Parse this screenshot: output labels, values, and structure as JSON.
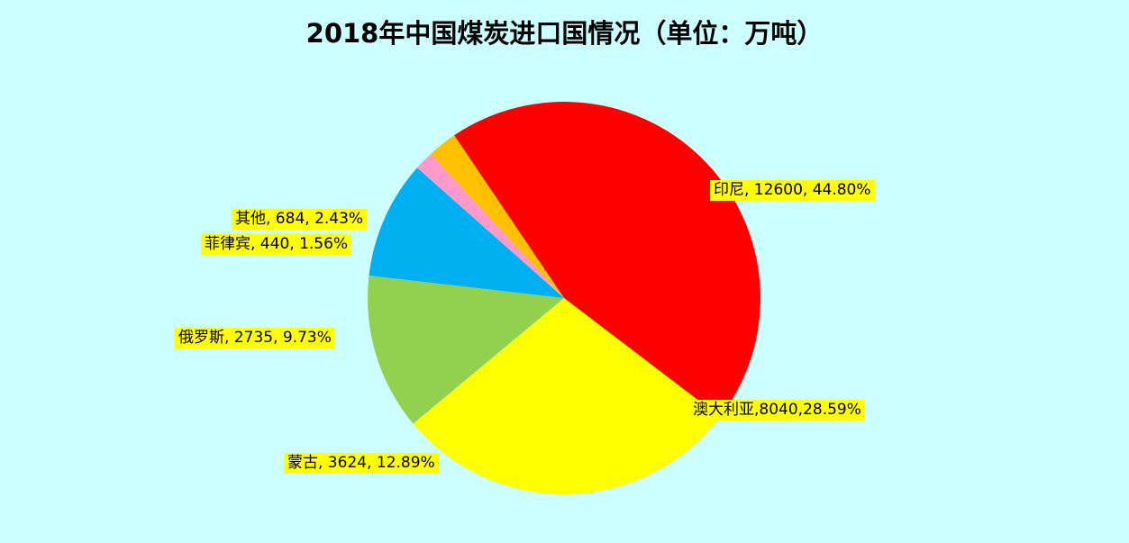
{
  "chart_data": {
    "type": "pie",
    "title": "2018年中国煤炭进口国情况（单位：万吨）",
    "slices": [
      {
        "name": "印尼",
        "value": 12600,
        "percent": "44.80%",
        "label": "印尼, 12600, 44.80%",
        "color": "#FF0000"
      },
      {
        "name": "澳大利亚",
        "value": 8040,
        "percent": "28.59%",
        "label": "澳大利亚,8040,28.59%",
        "color": "#FFFF00"
      },
      {
        "name": "蒙古",
        "value": 3624,
        "percent": "12.89%",
        "label": "蒙古, 3624, 12.89%",
        "color": "#92D050"
      },
      {
        "name": "俄罗斯",
        "value": 2735,
        "percent": "9.73%",
        "label": "俄罗斯, 2735, 9.73%",
        "color": "#00B0F0"
      },
      {
        "name": "菲律宾",
        "value": 440,
        "percent": "1.56%",
        "label": "菲律宾, 440, 1.56%",
        "color": "#FF99CC"
      },
      {
        "name": "其他",
        "value": 684,
        "percent": "2.43%",
        "label": "其他, 684, 2.43%",
        "color": "#FFC000"
      }
    ],
    "legend": "none",
    "label_background": "#FFFF00",
    "background": "#CCFFFF"
  }
}
